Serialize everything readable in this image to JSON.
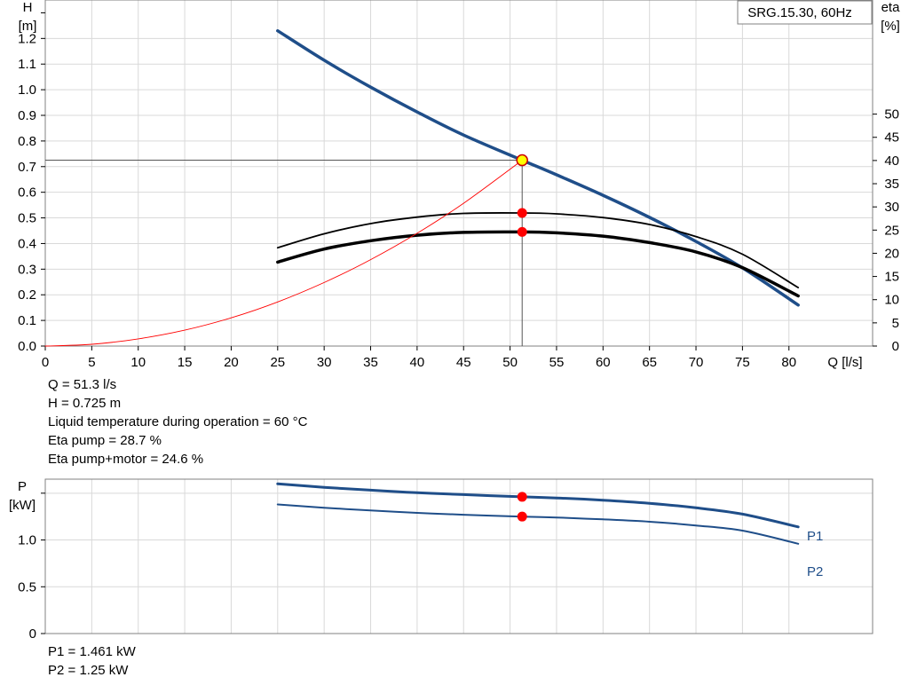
{
  "chart_data": [
    {
      "type": "line",
      "title": "SRG.15.30, 60Hz",
      "xlabel": "Q [l/s]",
      "ylabel_left": [
        "H",
        "[m]"
      ],
      "ylabel_right": [
        "eta",
        "[%]"
      ],
      "xlim": [
        0,
        89
      ],
      "ylim_left": [
        0,
        1.35
      ],
      "ylim_right": [
        0,
        74.6
      ],
      "x_ticks": [
        0,
        5,
        10,
        15,
        20,
        25,
        30,
        35,
        40,
        45,
        50,
        55,
        60,
        65,
        70,
        75,
        80
      ],
      "y_left_ticks": [
        "0.0",
        "0.1",
        "0.2",
        "0.3",
        "0.4",
        "0.5",
        "0.6",
        "0.7",
        "0.8",
        "0.9",
        "1.0",
        "1.1",
        "1.2"
      ],
      "y_right_ticks": [
        "0",
        "5",
        "10",
        "15",
        "20",
        "25",
        "30",
        "35",
        "40",
        "45",
        "50"
      ],
      "grid": true,
      "series": [
        {
          "role": "head",
          "axis": "left",
          "color": "#1f4e89",
          "x": [
            25,
            30,
            35,
            40,
            45,
            51.3,
            55,
            60,
            65,
            70,
            75,
            81
          ],
          "y": [
            1.23,
            1.115,
            1.01,
            0.913,
            0.823,
            0.725,
            0.668,
            0.588,
            0.502,
            0.408,
            0.305,
            0.16
          ]
        },
        {
          "role": "eta_pump",
          "axis": "right",
          "color": "#000000",
          "x": [
            25,
            30,
            35,
            40,
            45,
            51.3,
            55,
            60,
            65,
            70,
            75,
            81
          ],
          "y": [
            21.2,
            24.2,
            26.4,
            27.8,
            28.6,
            28.7,
            28.5,
            27.7,
            26.2,
            23.6,
            19.8,
            12.6
          ]
        },
        {
          "role": "eta_total",
          "axis": "right",
          "color": "#000000",
          "x": [
            25,
            30,
            35,
            40,
            45,
            51.3,
            55,
            60,
            65,
            70,
            75,
            81
          ],
          "y": [
            18.1,
            20.9,
            22.7,
            23.9,
            24.5,
            24.6,
            24.4,
            23.7,
            22.3,
            20.3,
            16.9,
            10.8
          ]
        },
        {
          "role": "system_curve",
          "axis": "left",
          "color": "#ff0000",
          "x": [
            0,
            5,
            10,
            15,
            20,
            25,
            30,
            35,
            40,
            45,
            51.3
          ],
          "y": [
            0,
            0.007,
            0.028,
            0.062,
            0.11,
            0.172,
            0.248,
            0.337,
            0.44,
            0.557,
            0.725
          ]
        }
      ],
      "operating_point": {
        "x": 51.3,
        "y": 0.725,
        "eta_pump": 28.7,
        "eta_total": 24.6
      }
    },
    {
      "type": "line",
      "ylabel": [
        "P",
        "[kW]"
      ],
      "xlim": [
        0,
        89
      ],
      "ylim": [
        0,
        1.65
      ],
      "y_ticks": [
        "0",
        "0.5",
        "1.0"
      ],
      "grid": true,
      "series": [
        {
          "name": "P1",
          "color": "#1f4e89",
          "x": [
            25,
            30,
            35,
            40,
            45,
            51.3,
            55,
            60,
            65,
            70,
            75,
            81
          ],
          "y": [
            1.6,
            1.563,
            1.532,
            1.505,
            1.485,
            1.461,
            1.449,
            1.425,
            1.392,
            1.344,
            1.276,
            1.14
          ]
        },
        {
          "name": "P2",
          "color": "#1f4e89",
          "x": [
            25,
            30,
            35,
            40,
            45,
            51.3,
            55,
            60,
            65,
            70,
            75,
            81
          ],
          "y": [
            1.38,
            1.345,
            1.315,
            1.29,
            1.27,
            1.25,
            1.24,
            1.22,
            1.195,
            1.155,
            1.1,
            0.96
          ]
        }
      ],
      "operating_point": {
        "x": 51.3,
        "P1": 1.461,
        "P2": 1.25
      }
    }
  ],
  "info": {
    "q": "Q = 51.3 l/s",
    "h": "H = 0.725 m",
    "temp": "Liquid temperature during operation = 60 °C",
    "eta_pump": "Eta pump = 28.7 %",
    "eta_total": "Eta pump+motor = 24.6 %",
    "p1": "P1 = 1.461 kW",
    "p2": "P2 = 1.25 kW"
  },
  "colors": {
    "pump_curve": "#1f4e89",
    "system_curve": "#ff0000",
    "grid": "#d9d9d9",
    "marker": "#ff0000",
    "duty_marker": "#ffff00"
  }
}
